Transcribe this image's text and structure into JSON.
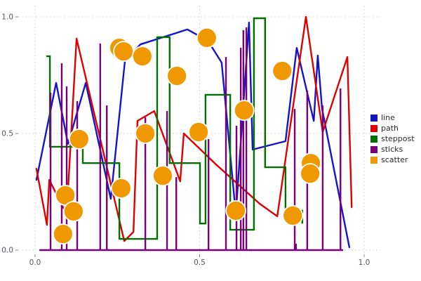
{
  "chart_data": {
    "type": "mixed",
    "title": "",
    "xlabel": "",
    "ylabel": "",
    "xlim": [
      0,
      1
    ],
    "ylim": [
      0,
      1
    ],
    "x_ticks": [
      {
        "v": 0.0,
        "label": "0.0"
      },
      {
        "v": 0.5,
        "label": "0.5"
      },
      {
        "v": 1.0,
        "label": "1.0"
      }
    ],
    "y_ticks": [
      {
        "v": 0.0,
        "label": "0.0"
      },
      {
        "v": 0.5,
        "label": "0.5"
      },
      {
        "v": 1.0,
        "label": "1.0"
      }
    ],
    "grid": {
      "show": true,
      "style": "dashed",
      "color": "#d9d9e2"
    },
    "legend": {
      "position": "center-right",
      "entries": [
        "line",
        "path",
        "steppost",
        "sticks",
        "scatter"
      ]
    },
    "series": [
      {
        "name": "line",
        "type": "line",
        "color": "#1414cc",
        "points": [
          [
            0.004,
            0.301
          ],
          [
            0.064,
            0.717
          ],
          [
            0.1,
            0.455
          ],
          [
            0.154,
            0.717
          ],
          [
            0.23,
            0.22
          ],
          [
            0.273,
            0.81
          ],
          [
            0.32,
            0.882
          ],
          [
            0.463,
            0.946
          ],
          [
            0.525,
            0.898
          ],
          [
            0.567,
            0.804
          ],
          [
            0.61,
            0.154
          ],
          [
            0.65,
            0.976
          ],
          [
            0.661,
            0.431
          ],
          [
            0.761,
            0.467
          ],
          [
            0.795,
            0.867
          ],
          [
            0.847,
            0.554
          ],
          [
            0.859,
            0.834
          ],
          [
            0.872,
            0.605
          ],
          [
            0.955,
            0.012
          ]
        ]
      },
      {
        "name": "path",
        "type": "line",
        "color": "#e00000",
        "points": [
          [
            0.004,
            0.349
          ],
          [
            0.036,
            0.108
          ],
          [
            0.043,
            0.301
          ],
          [
            0.096,
            0.154
          ],
          [
            0.126,
            0.907
          ],
          [
            0.271,
            0.039
          ],
          [
            0.299,
            0.078
          ],
          [
            0.311,
            0.554
          ],
          [
            0.362,
            0.596
          ],
          [
            0.441,
            0.295
          ],
          [
            0.452,
            0.5
          ],
          [
            0.55,
            0.367
          ],
          [
            0.682,
            0.199
          ],
          [
            0.736,
            0.145
          ],
          [
            0.823,
            1.0
          ],
          [
            0.874,
            0.506
          ],
          [
            0.949,
            0.828
          ],
          [
            0.962,
            0.184
          ]
        ]
      },
      {
        "name": "steppost",
        "type": "step-post",
        "color": "#007000",
        "points": [
          [
            0.034,
            0.831
          ],
          [
            0.045,
            0.443
          ],
          [
            0.145,
            0.373
          ],
          [
            0.256,
            0.048
          ],
          [
            0.371,
            0.913
          ],
          [
            0.409,
            0.373
          ],
          [
            0.501,
            0.114
          ],
          [
            0.518,
            0.666
          ],
          [
            0.593,
            0.087
          ],
          [
            0.665,
            0.994
          ],
          [
            0.699,
            0.355
          ],
          [
            0.761,
            0.169
          ],
          [
            0.812,
            0.114
          ]
        ]
      },
      {
        "name": "sticks",
        "type": "stem",
        "color": "#780078",
        "baseline_x": [
          0.013,
          0.936
        ],
        "points": [
          [
            0.047,
            0.675
          ],
          [
            0.081,
            0.801
          ],
          [
            0.096,
            0.702
          ],
          [
            0.128,
            0.639
          ],
          [
            0.198,
            0.886
          ],
          [
            0.218,
            0.62
          ],
          [
            0.335,
            0.569
          ],
          [
            0.401,
            0.596
          ],
          [
            0.429,
            0.313
          ],
          [
            0.527,
            0.476
          ],
          [
            0.58,
            0.828
          ],
          [
            0.612,
            0.533
          ],
          [
            0.625,
            0.867
          ],
          [
            0.633,
            0.943
          ],
          [
            0.642,
            0.955
          ],
          [
            0.789,
            0.605
          ],
          [
            0.793,
            0.027
          ],
          [
            0.827,
            0.684
          ],
          [
            0.874,
            0.62
          ],
          [
            0.928,
            0.693
          ]
        ]
      },
      {
        "name": "scatter",
        "type": "scatter",
        "color": "#f09800",
        "edge_color": "#ffffff",
        "marker_radius_px": 14,
        "points": [
          [
            0.092,
            0.235
          ],
          [
            0.117,
            0.166
          ],
          [
            0.085,
            0.069
          ],
          [
            0.134,
            0.476
          ],
          [
            0.256,
            0.867
          ],
          [
            0.269,
            0.852
          ],
          [
            0.326,
            0.831
          ],
          [
            0.262,
            0.265
          ],
          [
            0.335,
            0.5
          ],
          [
            0.388,
            0.319
          ],
          [
            0.431,
            0.747
          ],
          [
            0.497,
            0.506
          ],
          [
            0.522,
            0.91
          ],
          [
            0.635,
            0.599
          ],
          [
            0.61,
            0.169
          ],
          [
            0.751,
            0.768
          ],
          [
            0.783,
            0.148
          ],
          [
            0.838,
            0.373
          ],
          [
            0.836,
            0.328
          ]
        ]
      }
    ]
  }
}
